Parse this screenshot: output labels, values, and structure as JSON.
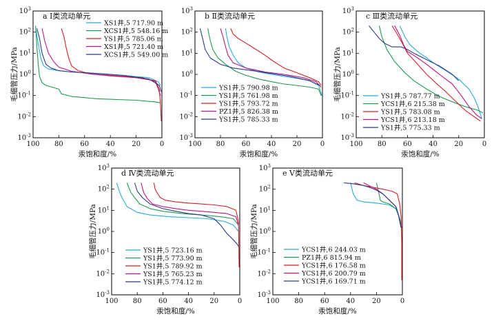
{
  "colors": {
    "series": [
      "#29a8d8",
      "#1a9a50",
      "#d41f26",
      "#c0127a",
      "#283a85"
    ]
  },
  "chart_data": [
    {
      "type": "line",
      "title": "a Ⅰ类流动单元",
      "xlabel": "汞饱和度/%",
      "ylabel": "毛细管压力/MPa",
      "xlim": [
        100,
        0
      ],
      "ylim": [
        0.001,
        1000
      ],
      "yscale": "log",
      "x_ticks": [
        "100",
        "80",
        "60",
        "40",
        "20",
        "0"
      ],
      "y_ticks": [
        "10⁻³",
        "10⁻²",
        "10⁻¹",
        "10⁰",
        "10¹",
        "10²",
        "10³"
      ],
      "legend_position": "top-right",
      "series": [
        {
          "name": "XS1井,5 717.90 m",
          "x": [
            98,
            96,
            94,
            92,
            88,
            80,
            70,
            50,
            30,
            10,
            3,
            1
          ],
          "y": [
            150,
            30,
            6,
            2.6,
            1.8,
            1.5,
            1.3,
            1.1,
            0.9,
            0.7,
            0.45,
            0.3
          ]
        },
        {
          "name": "XCS1井,5 548.16 m",
          "x": [
            98,
            97,
            96,
            95,
            93,
            90,
            80,
            78,
            70,
            50,
            20,
            5,
            1
          ],
          "y": [
            200,
            20,
            3,
            0.8,
            0.4,
            0.3,
            0.2,
            0.12,
            0.09,
            0.07,
            0.06,
            0.05,
            0.045
          ]
        },
        {
          "name": "YS1井,5 785.06 m",
          "x": [
            78,
            76,
            74,
            72,
            70,
            65,
            55,
            40,
            20,
            5,
            2,
            1,
            0.5
          ],
          "y": [
            150,
            60,
            15,
            5,
            2.5,
            1.5,
            1.05,
            0.85,
            0.7,
            0.5,
            0.2,
            0.03,
            0.006
          ]
        },
        {
          "name": "XS1井,5 721.40 m",
          "x": [
            93,
            91,
            88,
            84,
            80,
            70,
            55,
            35,
            15,
            5,
            1
          ],
          "y": [
            150,
            40,
            10,
            4,
            2.2,
            1.4,
            1.05,
            0.85,
            0.7,
            0.45,
            0.1
          ]
        },
        {
          "name": "XCS1井,5 549.00 m",
          "x": [
            97,
            95,
            93,
            90,
            86,
            80,
            70,
            50,
            30,
            10,
            2,
            0.5
          ],
          "y": [
            150,
            50,
            10,
            3,
            2,
            1.5,
            1.3,
            1.1,
            0.9,
            0.6,
            0.3,
            0.15
          ]
        }
      ]
    },
    {
      "type": "line",
      "title": "b Ⅱ类流动单元",
      "xlabel": "汞饱和度/%",
      "ylabel": "",
      "xlim": [
        100,
        0
      ],
      "ylim": [
        0.001,
        1000
      ],
      "yscale": "log",
      "x_ticks": [
        "100",
        "80",
        "60",
        "40",
        "20",
        "0"
      ],
      "y_ticks": [
        "10⁻³",
        "10⁻²",
        "10⁻¹",
        "10⁰",
        "10¹",
        "10²",
        "10³"
      ],
      "legend_position": "bottom-left",
      "series": [
        {
          "name": "YS1井,5 790.98 m",
          "x": [
            76,
            75,
            73,
            70,
            66,
            60,
            50,
            40,
            30,
            20,
            10,
            3,
            0.5
          ],
          "y": [
            150,
            60,
            20,
            8,
            3.5,
            2,
            1.3,
            1,
            0.8,
            0.65,
            0.5,
            0.3,
            0.1
          ]
        },
        {
          "name": "YS1井,5 761.98 m",
          "x": [
            90,
            88,
            86,
            82,
            76,
            68,
            60,
            50,
            40,
            30,
            20,
            10,
            3,
            1
          ],
          "y": [
            150,
            40,
            15,
            6,
            3,
            1.4,
            0.9,
            0.6,
            0.45,
            0.35,
            0.3,
            0.25,
            0.2,
            0.1
          ]
        },
        {
          "name": "YS1井,5 793.72 m",
          "x": [
            72,
            70,
            66,
            60,
            52,
            45,
            38,
            30,
            20,
            10,
            3,
            1
          ],
          "y": [
            150,
            80,
            50,
            30,
            15,
            8,
            4,
            2,
            1.2,
            0.7,
            0.45,
            0.3
          ]
        },
        {
          "name": "PZ1井,5 826.38 m",
          "x": [
            80,
            78,
            76,
            74,
            70,
            60,
            45,
            30,
            15,
            5,
            1
          ],
          "y": [
            150,
            60,
            20,
            8,
            3.5,
            2,
            1.3,
            1,
            0.7,
            0.45,
            0.25
          ]
        },
        {
          "name": "YS1井,5 785.33 m",
          "x": [
            96,
            94,
            92,
            88,
            80,
            70,
            55,
            40,
            25,
            10,
            2
          ],
          "y": [
            150,
            50,
            15,
            6,
            3,
            2,
            1.5,
            1.1,
            0.8,
            0.5,
            0.3
          ]
        }
      ]
    },
    {
      "type": "line",
      "title": "c Ⅲ类流动单元",
      "xlabel": "汞饱和度/%",
      "ylabel": "毛细管压力/MPa",
      "xlim": [
        100,
        0
      ],
      "ylim": [
        0.001,
        1000
      ],
      "yscale": "log",
      "x_ticks": [
        "100",
        "80",
        "60",
        "40",
        "20",
        "0"
      ],
      "y_ticks": [
        "10⁻³",
        "10⁻²",
        "10⁻¹",
        "10⁰",
        "10¹",
        "10²",
        "10³"
      ],
      "legend_position": "bottom-left",
      "series": [
        {
          "name": "YS1井,5 787.77 m",
          "x": [
            66,
            62,
            58,
            52,
            45,
            38,
            30,
            20,
            12,
            8,
            5,
            2
          ],
          "y": [
            200,
            60,
            25,
            12,
            6,
            3,
            1.5,
            0.6,
            0.2,
            0.08,
            0.03,
            0.008
          ]
        },
        {
          "name": "YCS1井,6 215.38 m",
          "x": [
            82,
            80,
            76,
            70,
            62,
            55,
            45,
            35,
            25,
            15,
            5,
            1
          ],
          "y": [
            200,
            60,
            15,
            4,
            1.2,
            0.5,
            0.2,
            0.09,
            0.05,
            0.03,
            0.02,
            0.015
          ]
        },
        {
          "name": "YS1井,5 783.08 m",
          "x": [
            72,
            68,
            64,
            60,
            52,
            45,
            38,
            30,
            22,
            15,
            8,
            3
          ],
          "y": [
            200,
            80,
            30,
            10,
            3,
            1,
            0.4,
            0.15,
            0.05,
            0.02,
            0.01,
            0.006
          ]
        },
        {
          "name": "YCS1井,6 213.18 m",
          "x": [
            70,
            66,
            63,
            60,
            55,
            45,
            35,
            25,
            18,
            12,
            6,
            2
          ],
          "y": [
            200,
            70,
            25,
            12,
            8,
            3,
            1,
            0.35,
            0.1,
            0.03,
            0.012,
            0.008
          ]
        },
        {
          "name": "YS1井,5 775.33 m",
          "x": [
            90,
            86,
            82,
            78,
            72,
            65,
            60,
            55,
            45,
            35,
            25,
            20
          ],
          "y": [
            200,
            100,
            50,
            30,
            20,
            20,
            15,
            10,
            5,
            2.5,
            1,
            0.5
          ]
        }
      ]
    },
    {
      "type": "line",
      "title": "d Ⅳ类流动单元",
      "xlabel": "汞饱和度/%",
      "ylabel": "毛细管压力/MPa",
      "xlim": [
        100,
        0
      ],
      "ylim": [
        0.001,
        1000
      ],
      "yscale": "log",
      "x_ticks": [
        "100",
        "80",
        "60",
        "40",
        "20",
        "0"
      ],
      "y_ticks": [
        "10⁻³",
        "10⁻²",
        "10⁻¹",
        "10⁰",
        "10¹",
        "10²",
        "10³"
      ],
      "legend_position": "bottom-left",
      "series": [
        {
          "name": "YS1井,5 723.16 m",
          "x": [
            96,
            94,
            92,
            88,
            80,
            70,
            55,
            40,
            25,
            12,
            5,
            1
          ],
          "y": [
            200,
            80,
            40,
            15,
            8,
            6,
            5,
            4.5,
            4,
            3,
            2,
            1
          ]
        },
        {
          "name": "YS1井,5 773.90 m",
          "x": [
            88,
            85,
            82,
            78,
            70,
            60,
            45,
            30,
            15,
            5,
            1
          ],
          "y": [
            200,
            70,
            40,
            20,
            12,
            9,
            7,
            6,
            5,
            4,
            2
          ]
        },
        {
          "name": "YS1井,5 789.92 m",
          "x": [
            67,
            66,
            64,
            62,
            58,
            50,
            40,
            30,
            20,
            10,
            3,
            1,
            0.5
          ],
          "y": [
            200,
            100,
            60,
            40,
            30,
            25,
            22,
            20,
            18,
            15,
            10,
            3,
            0.02
          ]
        },
        {
          "name": "YS1井,5 765.23 m",
          "x": [
            77,
            75,
            72,
            68,
            60,
            50,
            40,
            30,
            20,
            10,
            3,
            1
          ],
          "y": [
            200,
            70,
            35,
            20,
            15,
            12,
            10,
            9,
            8,
            7,
            5,
            2
          ]
        },
        {
          "name": "YS1井,5 774.12 m",
          "x": [
            82,
            80,
            76,
            70,
            60,
            50,
            40,
            30,
            20,
            15,
            10,
            5,
            2,
            1
          ],
          "y": [
            200,
            80,
            40,
            20,
            12,
            9,
            7,
            6,
            4,
            2,
            0.8,
            0.4,
            0.25,
            0.2
          ]
        }
      ]
    },
    {
      "type": "line",
      "title": "e Ⅴ类流动单元",
      "xlabel": "汞饱和度/%",
      "ylabel": "毛细管压力/MPa",
      "xlim": [
        100,
        0
      ],
      "ylim": [
        0.001,
        1000
      ],
      "yscale": "log",
      "x_ticks": [
        "100",
        "80",
        "60",
        "40",
        "20",
        "0"
      ],
      "y_ticks": [
        "10⁻³",
        "10⁻²",
        "10⁻¹",
        "10⁰",
        "10¹",
        "10²",
        "10³"
      ],
      "legend_position": "bottom-left",
      "series": [
        {
          "name": "YCS1井,6 244.03 m",
          "x": [
            40,
            38,
            35,
            30,
            20,
            10,
            5,
            2,
            1,
            0.5
          ],
          "y": [
            200,
            60,
            30,
            25,
            22,
            18,
            12,
            4,
            2,
            1.5
          ]
        },
        {
          "name": "PZ1井,6 815.94 m",
          "x": [
            20,
            18,
            17,
            15,
            10,
            5,
            2,
            1,
            0.5
          ],
          "y": [
            200,
            60,
            30,
            25,
            20,
            12,
            4,
            2,
            1.5
          ]
        },
        {
          "name": "YCS1井,6 176.58 m",
          "x": [
            37,
            30,
            22,
            15,
            8,
            4,
            2,
            1,
            0.5,
            0.5
          ],
          "y": [
            200,
            150,
            120,
            100,
            80,
            60,
            20,
            5,
            0.3,
            0.005
          ]
        },
        {
          "name": "YCS1井,6 200.79 m",
          "x": [
            30,
            26,
            20,
            15,
            10,
            5,
            3,
            2,
            1
          ],
          "y": [
            200,
            150,
            100,
            60,
            30,
            15,
            6,
            3,
            2
          ]
        },
        {
          "name": "YCS1井,6 169.71 m",
          "x": [
            45,
            38,
            30,
            25,
            20,
            15,
            10,
            5,
            3,
            2,
            1
          ],
          "y": [
            200,
            180,
            150,
            120,
            90,
            60,
            30,
            15,
            6,
            3,
            1.5
          ]
        }
      ]
    }
  ]
}
